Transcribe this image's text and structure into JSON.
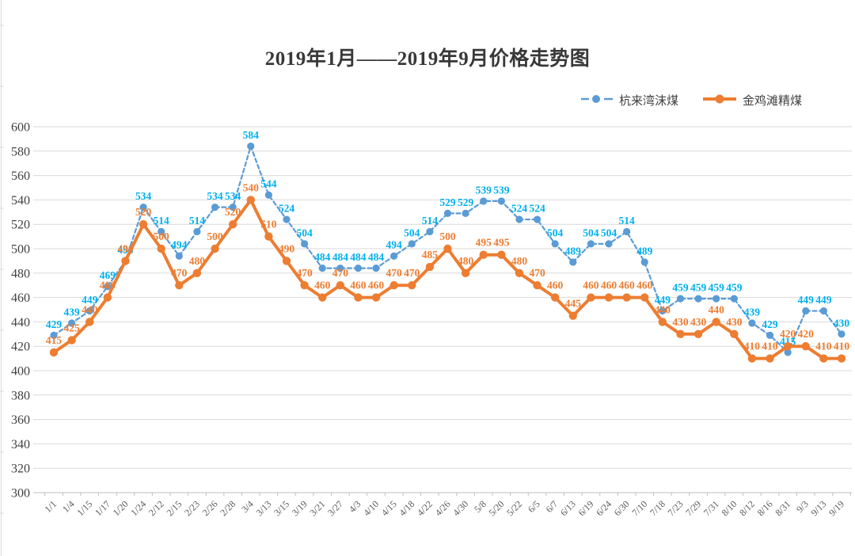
{
  "title": "2019年1月——2019年9月价格走势图",
  "legend": {
    "items": [
      {
        "label": "杭来湾沫煤",
        "marker": "dashed-line-dot"
      },
      {
        "label": "金鸡滩精煤",
        "marker": "solid-line-dot"
      }
    ]
  },
  "colors": {
    "blue_line": "#5B9BD5",
    "blue_label": "#00B0F0",
    "orange_line": "#ED7D31",
    "orange_label": "#ED7D31",
    "grid": "#D9D9D9",
    "axis": "#BFBFBF",
    "axis_text": "#404040",
    "x_text": "#595959",
    "title_text": "#383838"
  },
  "chart_data": {
    "type": "line",
    "title": "2019年1月——2019年9月价格走势图",
    "categories": [
      "1/1",
      "1/4",
      "1/15",
      "1/17",
      "1/20",
      "1/24",
      "2/12",
      "2/15",
      "2/23",
      "2/26",
      "2/28",
      "3/4",
      "3/13",
      "3/15",
      "3/19",
      "3/21",
      "3/27",
      "4/3",
      "4/10",
      "4/15",
      "4/18",
      "4/22",
      "4/26",
      "4/30",
      "5/8",
      "5/20",
      "5/22",
      "6/5",
      "6/7",
      "6/13",
      "6/19",
      "6/24",
      "6/30",
      "7/10",
      "7/18",
      "7/23",
      "7/29",
      "7/31",
      "8/10",
      "8/12",
      "8/16",
      "8/31",
      "9/3",
      "9/13",
      "9/19"
    ],
    "series": [
      {
        "name": "杭来湾沫煤",
        "style": "dashed",
        "values": [
          429,
          439,
          449,
          469,
          490,
          534,
          514,
          494,
          514,
          534,
          534,
          584,
          544,
          524,
          504,
          484,
          484,
          484,
          484,
          494,
          504,
          514,
          529,
          529,
          539,
          539,
          524,
          524,
          504,
          489,
          504,
          504,
          514,
          489,
          449,
          459,
          459,
          459,
          459,
          439,
          429,
          415,
          449,
          449,
          430
        ]
      },
      {
        "name": "金鸡滩精煤",
        "style": "solid",
        "values": [
          415,
          425,
          440,
          460,
          490,
          520,
          500,
          470,
          480,
          500,
          520,
          540,
          510,
          490,
          470,
          460,
          470,
          460,
          460,
          470,
          470,
          485,
          500,
          480,
          495,
          495,
          480,
          470,
          460,
          445,
          460,
          460,
          460,
          460,
          440,
          430,
          430,
          440,
          430,
          410,
          410,
          420,
          420,
          410,
          410
        ]
      }
    ],
    "ylim": [
      300,
      600
    ],
    "ytick_step": 20,
    "grid": true,
    "data_labels": true,
    "legend_position": "top-right"
  }
}
